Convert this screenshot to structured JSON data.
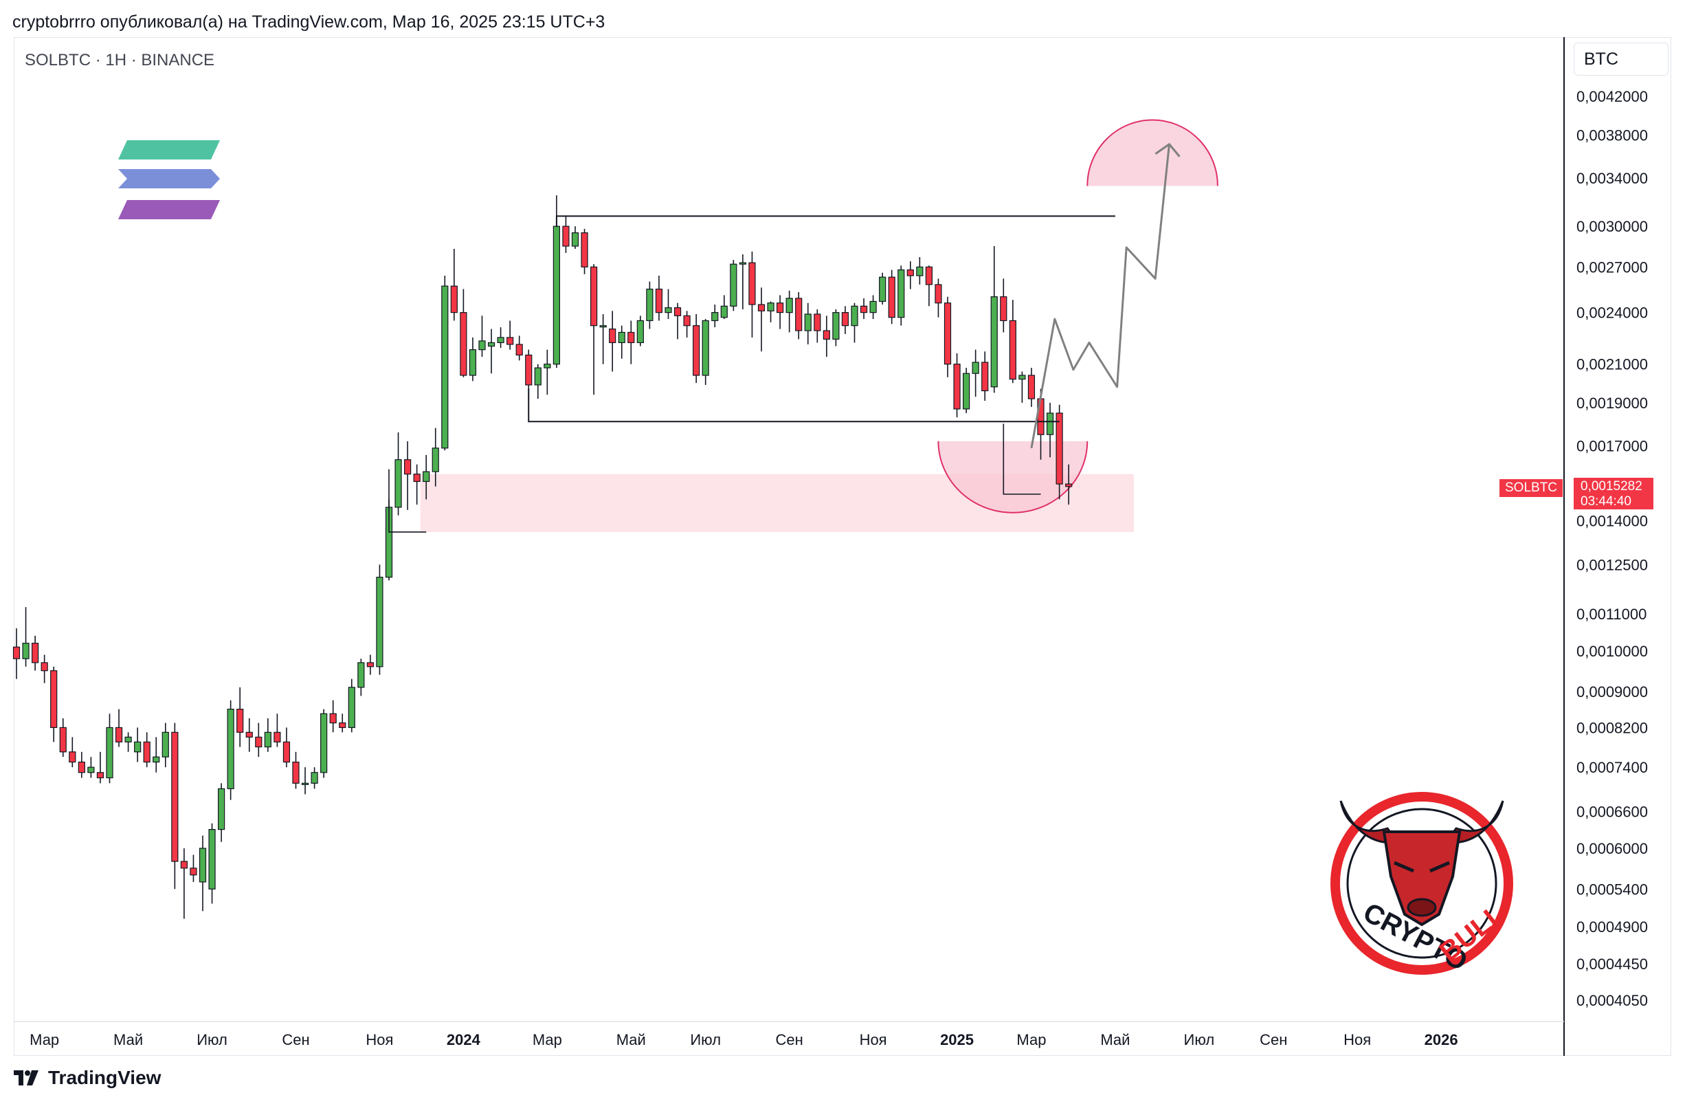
{
  "header": {
    "publish_line": "cryptobrrro опубликовал(а) на TradingView.com, Мар 16, 2025 23:15 UTC+3"
  },
  "chart_header": {
    "symbol_line": "SOLBTC · 1H · BINANCE",
    "currency": "BTC"
  },
  "price_tag": {
    "symbol": "SOLBTC",
    "price": "0,0015282",
    "countdown": "03:44:40"
  },
  "footer": {
    "brand": "TradingView"
  },
  "watermark": {
    "text_1": "CRYPTO",
    "text_2": "BULL"
  },
  "colors": {
    "up": "#22ab94",
    "up_fill": "#4caf50",
    "down": "#f23645",
    "zone": "#fde4e8",
    "cup": "#f8c8d6",
    "cup_stroke": "#e0306a",
    "projection": "#808080",
    "logo_top": "#4fc3a1",
    "logo_mid": "#7b8ed8",
    "logo_bot": "#9a5ab7"
  },
  "chart_data": {
    "type": "candlestick",
    "y_scale": "log",
    "ylim": [
      0.00039,
      0.0046
    ],
    "y_ticks": [
      "0,0042000",
      "0,0038000",
      "0,0034000",
      "0,0030000",
      "0,0027000",
      "0,0024000",
      "0,0021000",
      "0,0019000",
      "0,0017000",
      "0,0014000",
      "0,0012500",
      "0,0011000",
      "0,0010000",
      "0,0009000",
      "0,0008200",
      "0,0007400",
      "0,0006600",
      "0,0006000",
      "0,0005400",
      "0,0004900",
      "0,0004450",
      "0,0004050"
    ],
    "y_tick_values": [
      0.0042,
      0.0038,
      0.0034,
      0.003,
      0.0027,
      0.0024,
      0.0021,
      0.0019,
      0.0017,
      0.0014,
      0.00125,
      0.0011,
      0.001,
      0.0009,
      0.00082,
      0.00074,
      0.00066,
      0.0006,
      0.00054,
      0.00049,
      0.000445,
      0.000405
    ],
    "x_ticks": [
      {
        "label": "Мар",
        "bold": false,
        "i": 3
      },
      {
        "label": "Май",
        "bold": false,
        "i": 12
      },
      {
        "label": "Июл",
        "bold": false,
        "i": 21
      },
      {
        "label": "Сен",
        "bold": false,
        "i": 30
      },
      {
        "label": "Ноя",
        "bold": false,
        "i": 39
      },
      {
        "label": "2024",
        "bold": true,
        "i": 48
      },
      {
        "label": "Мар",
        "bold": false,
        "i": 57
      },
      {
        "label": "Май",
        "bold": false,
        "i": 66
      },
      {
        "label": "Июл",
        "bold": false,
        "i": 74
      },
      {
        "label": "Сен",
        "bold": false,
        "i": 83
      },
      {
        "label": "Ноя",
        "bold": false,
        "i": 92
      },
      {
        "label": "2025",
        "bold": true,
        "i": 101
      },
      {
        "label": "Мар",
        "bold": false,
        "i": 109
      },
      {
        "label": "Май",
        "bold": false,
        "i": 118
      },
      {
        "label": "Июл",
        "bold": false,
        "i": 127
      },
      {
        "label": "Сен",
        "bold": false,
        "i": 135
      },
      {
        "label": "Ноя",
        "bold": false,
        "i": 144
      },
      {
        "label": "2026",
        "bold": true,
        "i": 153
      }
    ],
    "candles": [
      [
        0.00101,
        0.00106,
        0.00093,
        0.00098
      ],
      [
        0.00098,
        0.00112,
        0.00096,
        0.00102
      ],
      [
        0.00102,
        0.00104,
        0.00095,
        0.00097
      ],
      [
        0.00097,
        0.00099,
        0.00092,
        0.00095
      ],
      [
        0.00095,
        0.00096,
        0.00079,
        0.00082
      ],
      [
        0.00082,
        0.00084,
        0.00076,
        0.00077
      ],
      [
        0.00077,
        0.0008,
        0.00074,
        0.00075
      ],
      [
        0.00075,
        0.00077,
        0.00072,
        0.00073
      ],
      [
        0.00073,
        0.00076,
        0.00072,
        0.00074
      ],
      [
        0.00073,
        0.00077,
        0.00071,
        0.00072
      ],
      [
        0.00072,
        0.00085,
        0.00071,
        0.00082
      ],
      [
        0.00082,
        0.00086,
        0.00078,
        0.00079
      ],
      [
        0.00079,
        0.00081,
        0.00077,
        0.0008
      ],
      [
        0.00077,
        0.00082,
        0.00075,
        0.00079
      ],
      [
        0.00079,
        0.00081,
        0.00074,
        0.00075
      ],
      [
        0.00075,
        0.0008,
        0.00073,
        0.00076
      ],
      [
        0.00076,
        0.00083,
        0.00074,
        0.00081
      ],
      [
        0.00081,
        0.00083,
        0.00054,
        0.00058
      ],
      [
        0.00058,
        0.0006,
        0.0005,
        0.00057
      ],
      [
        0.00057,
        0.00059,
        0.00055,
        0.00056
      ],
      [
        0.00055,
        0.00062,
        0.00051,
        0.0006
      ],
      [
        0.00054,
        0.00064,
        0.00052,
        0.00063
      ],
      [
        0.00063,
        0.00071,
        0.00061,
        0.0007
      ],
      [
        0.0007,
        0.00088,
        0.00068,
        0.00086
      ],
      [
        0.00086,
        0.00091,
        0.00078,
        0.00081
      ],
      [
        0.00081,
        0.00084,
        0.00077,
        0.0008
      ],
      [
        0.0008,
        0.00083,
        0.00076,
        0.00078
      ],
      [
        0.00078,
        0.00084,
        0.00077,
        0.00081
      ],
      [
        0.00081,
        0.00085,
        0.00078,
        0.00079
      ],
      [
        0.00079,
        0.00082,
        0.00074,
        0.00075
      ],
      [
        0.00075,
        0.00077,
        0.0007,
        0.00071
      ],
      [
        0.00071,
        0.00074,
        0.00069,
        0.00071
      ],
      [
        0.00071,
        0.00074,
        0.0007,
        0.00073
      ],
      [
        0.00073,
        0.00086,
        0.00072,
        0.00085
      ],
      [
        0.00085,
        0.00088,
        0.00081,
        0.00083
      ],
      [
        0.00083,
        0.00085,
        0.00081,
        0.00082
      ],
      [
        0.00082,
        0.00093,
        0.00081,
        0.00091
      ],
      [
        0.00091,
        0.00098,
        0.00089,
        0.00097
      ],
      [
        0.00097,
        0.00099,
        0.00094,
        0.00096
      ],
      [
        0.00096,
        0.00125,
        0.00094,
        0.00121
      ],
      [
        0.00121,
        0.00148,
        0.0012,
        0.00145
      ],
      [
        0.00145,
        0.00176,
        0.00142,
        0.00164
      ],
      [
        0.00164,
        0.00172,
        0.00144,
        0.00158
      ],
      [
        0.00158,
        0.00162,
        0.00146,
        0.00155
      ],
      [
        0.00155,
        0.00166,
        0.00148,
        0.00159
      ],
      [
        0.00159,
        0.00178,
        0.00153,
        0.00169
      ],
      [
        0.00169,
        0.00264,
        0.00168,
        0.00257
      ],
      [
        0.00257,
        0.00283,
        0.00235,
        0.0024
      ],
      [
        0.0024,
        0.00255,
        0.00203,
        0.00204
      ],
      [
        0.00204,
        0.00225,
        0.00201,
        0.00218
      ],
      [
        0.00218,
        0.00238,
        0.00214,
        0.00223
      ],
      [
        0.0022,
        0.0023,
        0.00205,
        0.00222
      ],
      [
        0.00222,
        0.00231,
        0.00219,
        0.00225
      ],
      [
        0.00225,
        0.00235,
        0.00218,
        0.00221
      ],
      [
        0.00221,
        0.00226,
        0.00212,
        0.00215
      ],
      [
        0.00215,
        0.00218,
        0.00192,
        0.00199
      ],
      [
        0.00199,
        0.0021,
        0.00192,
        0.00208
      ],
      [
        0.00208,
        0.00218,
        0.00194,
        0.0021
      ],
      [
        0.0021,
        0.00325,
        0.00208,
        0.003
      ],
      [
        0.003,
        0.00308,
        0.0028,
        0.00285
      ],
      [
        0.00285,
        0.003,
        0.00283,
        0.00295
      ],
      [
        0.00295,
        0.00298,
        0.00265,
        0.0027
      ],
      [
        0.0027,
        0.00272,
        0.00194,
        0.00232
      ],
      [
        0.00232,
        0.00239,
        0.0021,
        0.00232
      ],
      [
        0.0023,
        0.00241,
        0.00206,
        0.00222
      ],
      [
        0.00222,
        0.00232,
        0.00213,
        0.00228
      ],
      [
        0.00228,
        0.00235,
        0.0021,
        0.00222
      ],
      [
        0.00222,
        0.00238,
        0.0022,
        0.00235
      ],
      [
        0.00235,
        0.0026,
        0.0023,
        0.00255
      ],
      [
        0.00255,
        0.00264,
        0.00235,
        0.0024
      ],
      [
        0.0024,
        0.00255,
        0.00236,
        0.00243
      ],
      [
        0.00243,
        0.00246,
        0.00224,
        0.00238
      ],
      [
        0.00238,
        0.00241,
        0.00225,
        0.00232
      ],
      [
        0.00232,
        0.00239,
        0.002,
        0.00204
      ],
      [
        0.00204,
        0.00236,
        0.00199,
        0.00235
      ],
      [
        0.00235,
        0.00245,
        0.00231,
        0.0024
      ],
      [
        0.00237,
        0.00251,
        0.00236,
        0.00244
      ],
      [
        0.00244,
        0.00275,
        0.00241,
        0.00272
      ],
      [
        0.00272,
        0.00279,
        0.00242,
        0.00273
      ],
      [
        0.00273,
        0.00281,
        0.00225,
        0.00245
      ],
      [
        0.00245,
        0.00256,
        0.00217,
        0.00241
      ],
      [
        0.00241,
        0.00247,
        0.00234,
        0.00246
      ],
      [
        0.00246,
        0.00251,
        0.0023,
        0.0024
      ],
      [
        0.0024,
        0.00254,
        0.00228,
        0.00249
      ],
      [
        0.00249,
        0.00253,
        0.00224,
        0.00229
      ],
      [
        0.00229,
        0.00246,
        0.00221,
        0.00239
      ],
      [
        0.00239,
        0.00242,
        0.00222,
        0.00229
      ],
      [
        0.00229,
        0.00238,
        0.00214,
        0.00224
      ],
      [
        0.00224,
        0.00242,
        0.0022,
        0.0024
      ],
      [
        0.0024,
        0.00244,
        0.00227,
        0.00232
      ],
      [
        0.00232,
        0.00246,
        0.00222,
        0.00244
      ],
      [
        0.00244,
        0.00249,
        0.00236,
        0.0024
      ],
      [
        0.0024,
        0.00251,
        0.00236,
        0.00247
      ],
      [
        0.00247,
        0.00266,
        0.00245,
        0.00263
      ],
      [
        0.00263,
        0.00268,
        0.00233,
        0.00237
      ],
      [
        0.00237,
        0.00271,
        0.00232,
        0.00268
      ],
      [
        0.00268,
        0.00274,
        0.00255,
        0.00264
      ],
      [
        0.00264,
        0.00277,
        0.00258,
        0.0027
      ],
      [
        0.0027,
        0.00271,
        0.00244,
        0.00258
      ],
      [
        0.00258,
        0.00262,
        0.00237,
        0.00246
      ],
      [
        0.00246,
        0.0025,
        0.00203,
        0.0021
      ],
      [
        0.0021,
        0.00216,
        0.00183,
        0.00187
      ],
      [
        0.00187,
        0.00208,
        0.00185,
        0.00205
      ],
      [
        0.00205,
        0.00218,
        0.00193,
        0.00211
      ],
      [
        0.00211,
        0.00217,
        0.00191,
        0.00196
      ],
      [
        0.00198,
        0.00285,
        0.00195,
        0.0025
      ],
      [
        0.0025,
        0.00262,
        0.00228,
        0.00235
      ],
      [
        0.00235,
        0.00248,
        0.002,
        0.00202
      ],
      [
        0.00202,
        0.00206,
        0.0019,
        0.00204
      ],
      [
        0.00204,
        0.00208,
        0.00188,
        0.00192
      ],
      [
        0.00192,
        0.00197,
        0.00164,
        0.00175
      ],
      [
        0.00175,
        0.0019,
        0.00165,
        0.00185
      ],
      [
        0.00185,
        0.00189,
        0.00148,
        0.00154
      ],
      [
        0.00154,
        0.00162,
        0.00146,
        0.00153
      ]
    ],
    "annotations": {
      "range_box": {
        "i_start": 58,
        "i_end": 118,
        "i_left_tick": 55,
        "upper": 0.00308,
        "lower": 0.00181
      },
      "demand_zone": {
        "i_start": 43,
        "i_end": 120,
        "upper": 0.00158,
        "lower": 0.00136
      },
      "small_bracket": {
        "i_start": 40,
        "i_end": 44,
        "top": 0.0016,
        "bottom": 0.00136
      },
      "cup_low": {
        "i_start": 99,
        "i_end": 115,
        "rim": 0.00172,
        "bottom": 0.00143
      },
      "cup_high": {
        "i_start": 115,
        "i_end": 129,
        "rim": 0.00333,
        "top": 0.00395
      },
      "right_bracket": {
        "i_start": 106,
        "i_end": 110,
        "level": 0.0015
      },
      "projection_path": [
        [
          109,
          0.00169
        ],
        [
          111.5,
          0.00236
        ],
        [
          113.5,
          0.00207
        ],
        [
          115.2,
          0.00222
        ],
        [
          118.2,
          0.00198
        ],
        [
          119.2,
          0.00284
        ],
        [
          122.3,
          0.00262
        ],
        [
          123.8,
          0.00371
        ]
      ]
    }
  }
}
